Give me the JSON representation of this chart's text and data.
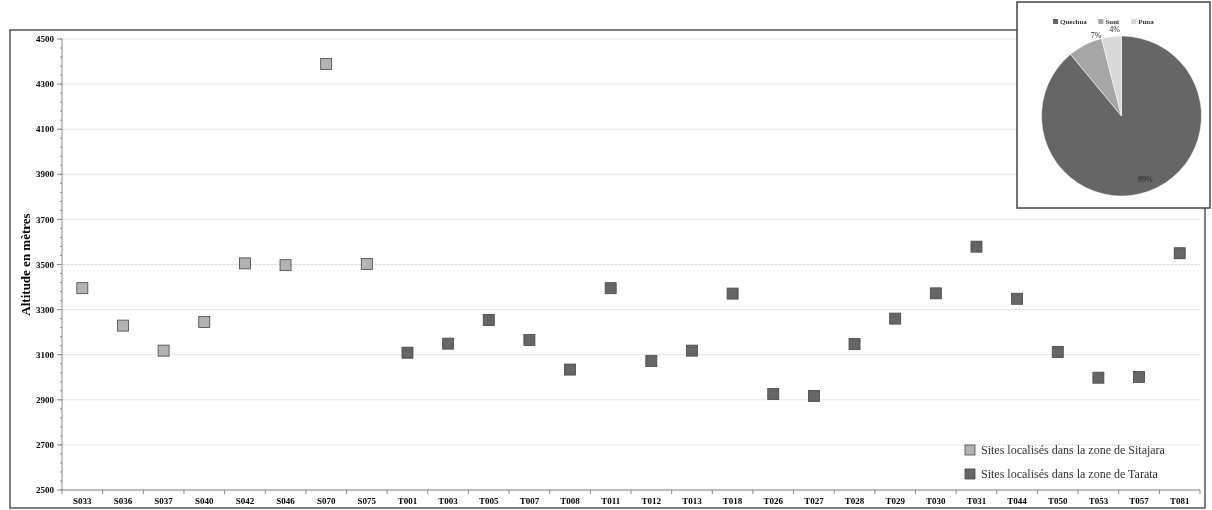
{
  "chart_data": [
    {
      "type": "scatter",
      "ylabel": "Altitude en mètres",
      "categories": [
        "S033",
        "S036",
        "S037",
        "S040",
        "S042",
        "S046",
        "S070",
        "S075",
        "T001",
        "T003",
        "T005",
        "T007",
        "T008",
        "T011",
        "T012",
        "T013",
        "T018",
        "T026",
        "T027",
        "T028",
        "T029",
        "T030",
        "T031",
        "T044",
        "T050",
        "T053",
        "T057",
        "T081"
      ],
      "ylim": [
        2500,
        4500
      ],
      "yticks": [
        2500,
        2700,
        2900,
        3100,
        3300,
        3500,
        3700,
        3900,
        4100,
        4300,
        4500
      ],
      "grid": "y",
      "legend": "bottom right",
      "marker": "square",
      "series": [
        {
          "name": "Sites localisés dans la zone de Sitajara",
          "color": "#b3b3b3",
          "values": [
            3395,
            3229,
            3118,
            3245,
            3505,
            3497,
            4389,
            3502,
            null,
            null,
            null,
            null,
            null,
            null,
            null,
            null,
            null,
            null,
            null,
            null,
            null,
            null,
            null,
            null,
            null,
            null,
            null,
            null
          ]
        },
        {
          "name": "Sites localisés dans la zone de Tarata",
          "color": "#666666",
          "values": [
            null,
            null,
            null,
            null,
            null,
            null,
            null,
            null,
            3109,
            3149,
            3254,
            3165,
            3034,
            3395,
            3072,
            3118,
            3371,
            2926,
            2917,
            3147,
            3260,
            3372,
            3579,
            3348,
            3112,
            2998,
            3001,
            3550
          ]
        }
      ]
    },
    {
      "type": "pie",
      "categories": [
        "Quechua",
        "Suni",
        "Puna"
      ],
      "values": [
        89,
        7,
        4
      ],
      "colors": [
        "#666666",
        "#a6a6a6",
        "#d9d9d9"
      ],
      "value_labels": [
        "89%",
        "7%",
        "4%"
      ],
      "legend": "top"
    }
  ]
}
